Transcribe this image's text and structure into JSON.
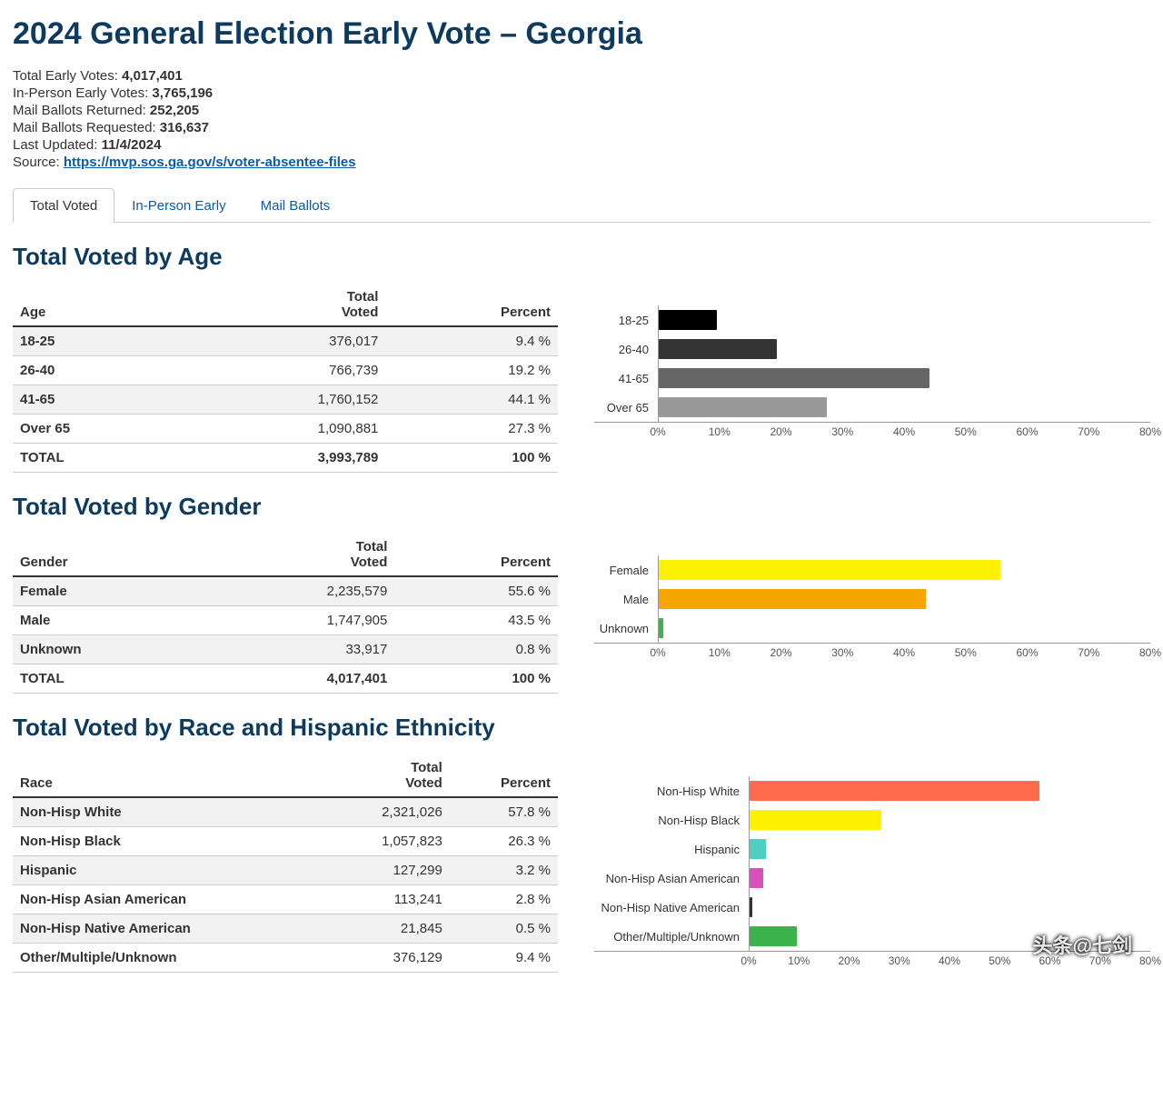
{
  "page_title": "2024 General Election Early Vote – Georgia",
  "summary": {
    "total_label": "Total Early Votes:",
    "total_value": "4,017,401",
    "inperson_label": "In-Person Early Votes:",
    "inperson_value": "3,765,196",
    "returned_label": "Mail Ballots Returned:",
    "returned_value": "252,205",
    "requested_label": "Mail Ballots Requested:",
    "requested_value": "316,637",
    "updated_label": "Last Updated:",
    "updated_value": "11/4/2024",
    "source_label": "Source:",
    "source_url": "https://mvp.sos.ga.gov/s/voter-absentee-files"
  },
  "tabs": {
    "t0": "Total Voted",
    "t1": "In-Person Early",
    "t2": "Mail Ballots"
  },
  "age_section": {
    "title": "Total Voted by Age",
    "col0": "Age",
    "col1_a": "Total",
    "col1_b": "Voted",
    "col2": "Percent",
    "rows": [
      {
        "label": "18-25",
        "voted": "376,017",
        "pct": "9.4 %",
        "val": 9.4,
        "color": "#000000"
      },
      {
        "label": "26-40",
        "voted": "766,739",
        "pct": "19.2 %",
        "val": 19.2,
        "color": "#333333"
      },
      {
        "label": "41-65",
        "voted": "1,760,152",
        "pct": "44.1 %",
        "val": 44.1,
        "color": "#666666"
      },
      {
        "label": "Over 65",
        "voted": "1,090,881",
        "pct": "27.3 %",
        "val": 27.3,
        "color": "#999999"
      }
    ],
    "total_label": "TOTAL",
    "total_voted": "3,993,789",
    "total_pct": "100 %",
    "axis": {
      "max": 80,
      "step": 10,
      "label_width": 70
    }
  },
  "gender_section": {
    "title": "Total Voted by Gender",
    "col0": "Gender",
    "col1_a": "Total",
    "col1_b": "Voted",
    "col2": "Percent",
    "rows": [
      {
        "label": "Female",
        "voted": "2,235,579",
        "pct": "55.6 %",
        "val": 55.6,
        "color": "#fff200"
      },
      {
        "label": "Male",
        "voted": "1,747,905",
        "pct": "43.5 %",
        "val": 43.5,
        "color": "#f7a600"
      },
      {
        "label": "Unknown",
        "voted": "33,917",
        "pct": "0.8 %",
        "val": 0.8,
        "color": "#3cb44b"
      }
    ],
    "total_label": "TOTAL",
    "total_voted": "4,017,401",
    "total_pct": "100 %",
    "axis": {
      "max": 80,
      "step": 10,
      "label_width": 70
    }
  },
  "race_section": {
    "title": "Total Voted by Race and Hispanic Ethnicity",
    "col0": "Race",
    "col1_a": "Total",
    "col1_b": "Voted",
    "col2": "Percent",
    "rows": [
      {
        "label": "Non-Hisp White",
        "voted": "2,321,026",
        "pct": "57.8 %",
        "val": 57.8,
        "color": "#ff6b4a"
      },
      {
        "label": "Non-Hisp Black",
        "voted": "1,057,823",
        "pct": "26.3 %",
        "val": 26.3,
        "color": "#fff200"
      },
      {
        "label": "Hispanic",
        "voted": "127,299",
        "pct": "3.2 %",
        "val": 3.2,
        "color": "#4dd0c0"
      },
      {
        "label": "Non-Hisp Asian American",
        "voted": "113,241",
        "pct": "2.8 %",
        "val": 2.8,
        "color": "#d94fbb"
      },
      {
        "label": "Non-Hisp Native American",
        "voted": "21,845",
        "pct": "0.5 %",
        "val": 0.5,
        "color": "#333333"
      },
      {
        "label": "Other/Multiple/Unknown",
        "voted": "376,129",
        "pct": "9.4 %",
        "val": 9.4,
        "color": "#3cb44b"
      }
    ],
    "axis": {
      "max": 80,
      "step": 10,
      "label_width": 170
    }
  },
  "watermark": {
    "main": "头条@七剑",
    "sub": " "
  }
}
